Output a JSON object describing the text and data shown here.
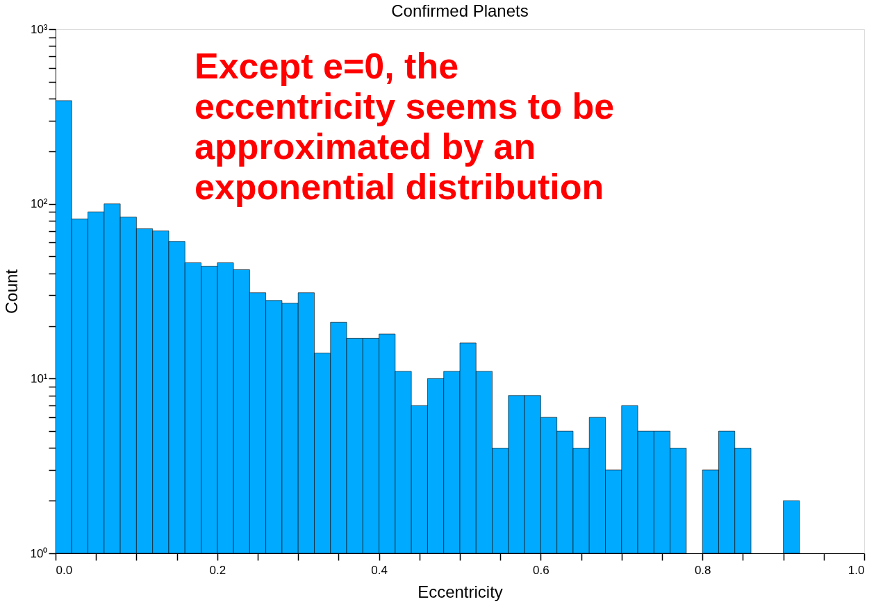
{
  "chart_data": {
    "type": "histogram",
    "title": "Confirmed Planets",
    "xlabel": "Eccentricity",
    "ylabel": "Count",
    "bins": [
      0,
      0.02,
      0.04,
      0.06,
      0.08,
      0.1,
      0.12,
      0.14,
      0.16,
      0.18,
      0.2,
      0.22,
      0.24,
      0.26,
      0.28,
      0.3,
      0.32,
      0.34,
      0.36,
      0.38,
      0.4,
      0.42,
      0.44,
      0.46,
      0.48,
      0.5,
      0.52,
      0.54,
      0.56,
      0.58,
      0.6,
      0.62,
      0.64,
      0.66,
      0.68,
      0.7,
      0.72,
      0.74,
      0.76,
      0.78,
      0.8,
      0.82,
      0.84,
      0.86,
      0.88,
      0.9,
      0.92,
      0.94,
      0.96,
      0.98,
      1.0
    ],
    "values": [
      390,
      82,
      90,
      100,
      84,
      72,
      70,
      61,
      46,
      44,
      46,
      42,
      31,
      28,
      27,
      31,
      14,
      21,
      17,
      17,
      18,
      11,
      7,
      10,
      11,
      16,
      11,
      4,
      8,
      8,
      6,
      5,
      4,
      6,
      3,
      7,
      5,
      5,
      4,
      null,
      3,
      5,
      4,
      null,
      null,
      2,
      null,
      null,
      null,
      null
    ],
    "color": "#00aaff",
    "log": "y",
    "grid": false,
    "xlim": [
      0,
      1.0
    ],
    "xticks": [
      {
        "value": 0,
        "label": "0.0"
      },
      {
        "value": 0.05,
        "label": null
      },
      {
        "value": 0.1,
        "label": null
      },
      {
        "value": 0.15,
        "label": null
      },
      0.2,
      {
        "value": 0.25,
        "label": null
      },
      {
        "value": 0.3,
        "label": null
      },
      {
        "value": 0.35,
        "label": null
      },
      0.4,
      {
        "value": 0.45,
        "label": null
      },
      {
        "value": 0.5,
        "label": null
      },
      {
        "value": 0.55,
        "label": null
      },
      0.6,
      {
        "value": 0.65,
        "label": null
      },
      {
        "value": 0.7,
        "label": null
      },
      {
        "value": 0.75,
        "label": null
      },
      0.8,
      {
        "value": 0.85,
        "label": null
      },
      {
        "value": 0.9,
        "label": null
      },
      {
        "value": 0.95,
        "label": null
      },
      {
        "value": 1.0,
        "label": "1.0"
      }
    ],
    "ylim": [
      1,
      1000
    ],
    "yticks": [
      {
        "value": 1,
        "label": "10⁰"
      },
      {
        "value": 2,
        "label": null
      },
      {
        "value": 3,
        "label": null
      },
      {
        "value": 4,
        "label": null
      },
      {
        "value": 5,
        "label": null
      },
      {
        "value": 6,
        "label": null
      },
      {
        "value": 7,
        "label": null
      },
      {
        "value": 8,
        "label": null
      },
      {
        "value": 9,
        "label": null
      },
      {
        "value": 10,
        "label": "10¹"
      },
      {
        "value": 20,
        "label": null
      },
      {
        "value": 30,
        "label": null
      },
      {
        "value": 40,
        "label": null
      },
      {
        "value": 50,
        "label": null
      },
      {
        "value": 60,
        "label": null
      },
      {
        "value": 70,
        "label": null
      },
      {
        "value": 80,
        "label": null
      },
      {
        "value": 90,
        "label": null
      },
      {
        "value": 100,
        "label": "10²"
      },
      {
        "value": 200,
        "label": null
      },
      {
        "value": 300,
        "label": null
      },
      {
        "value": 400,
        "label": null
      },
      {
        "value": 500,
        "label": null
      },
      {
        "value": 600,
        "label": null
      },
      {
        "value": 700,
        "label": null
      },
      {
        "value": 800,
        "label": null
      },
      {
        "value": 900,
        "label": null
      },
      {
        "value": 1000,
        "label": "10³"
      }
    ],
    "annotations": [
      "Except e=0, the eccentricity seems to be approximated by an exponential distribution"
    ]
  }
}
